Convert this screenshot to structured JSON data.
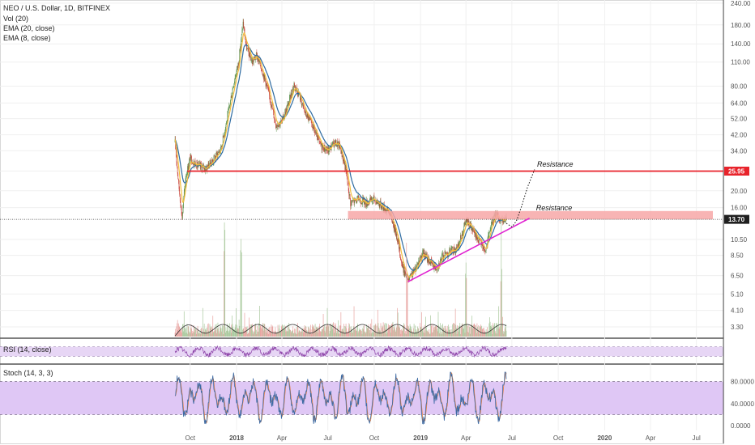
{
  "chart_data": {
    "type": "candlestick",
    "legend": {
      "title": "NEO / U.S. Dollar, 1D, BITFINEX",
      "vol": "Vol (20)",
      "ema20": "EMA (20, close)",
      "ema8": "EMA (8, close)"
    },
    "price_axis": {
      "scale": "log",
      "range": [
        2.9,
        245
      ],
      "ticks": [
        "240.00",
        "180.00",
        "140.00",
        "110.00",
        "80.00",
        "64.00",
        "52.00",
        "42.00",
        "34.00",
        "26.00",
        "20.00",
        "16.00",
        "13.70",
        "10.50",
        "8.50",
        "6.50",
        "5.10",
        "4.10",
        "3.30"
      ]
    },
    "time_axis": {
      "labels": [
        "Oct",
        "2018",
        "Apr",
        "Jul",
        "Oct",
        "2019",
        "Apr",
        "Jul",
        "Oct",
        "2020",
        "Apr",
        "Jul"
      ]
    },
    "price_path": [
      [
        "2017-09-01",
        38
      ],
      [
        "2017-09-08",
        22
      ],
      [
        "2017-09-15",
        14
      ],
      [
        "2017-09-22",
        24
      ],
      [
        "2017-10-01",
        31
      ],
      [
        "2017-10-15",
        28
      ],
      [
        "2017-11-01",
        27
      ],
      [
        "2017-11-15",
        30
      ],
      [
        "2017-12-01",
        35
      ],
      [
        "2017-12-15",
        55
      ],
      [
        "2017-12-25",
        80
      ],
      [
        "2018-01-05",
        110
      ],
      [
        "2018-01-14",
        185
      ],
      [
        "2018-01-20",
        135
      ],
      [
        "2018-02-01",
        110
      ],
      [
        "2018-02-10",
        120
      ],
      [
        "2018-02-20",
        100
      ],
      [
        "2018-03-01",
        82
      ],
      [
        "2018-03-10",
        65
      ],
      [
        "2018-03-20",
        48
      ],
      [
        "2018-04-01",
        50
      ],
      [
        "2018-04-15",
        65
      ],
      [
        "2018-04-25",
        82
      ],
      [
        "2018-05-05",
        72
      ],
      [
        "2018-05-15",
        58
      ],
      [
        "2018-06-01",
        47
      ],
      [
        "2018-06-15",
        37
      ],
      [
        "2018-07-01",
        34
      ],
      [
        "2018-07-15",
        38
      ],
      [
        "2018-07-25",
        36
      ],
      [
        "2018-08-05",
        27
      ],
      [
        "2018-08-15",
        17
      ],
      [
        "2018-09-01",
        18
      ],
      [
        "2018-09-15",
        17
      ],
      [
        "2018-10-01",
        18
      ],
      [
        "2018-10-15",
        16.5
      ],
      [
        "2018-11-01",
        15
      ],
      [
        "2018-11-15",
        11
      ],
      [
        "2018-11-25",
        7.5
      ],
      [
        "2018-12-07",
        6.0
      ],
      [
        "2018-12-20",
        7.0
      ],
      [
        "2019-01-05",
        8.8
      ],
      [
        "2019-01-20",
        7.8
      ],
      [
        "2019-02-01",
        7.2
      ],
      [
        "2019-02-15",
        8.5
      ],
      [
        "2019-03-01",
        9.0
      ],
      [
        "2019-03-15",
        9.3
      ],
      [
        "2019-04-01",
        13.5
      ],
      [
        "2019-04-10",
        12.5
      ],
      [
        "2019-04-20",
        11.0
      ],
      [
        "2019-05-01",
        10.0
      ],
      [
        "2019-05-10",
        9.0
      ],
      [
        "2019-05-20",
        12.5
      ],
      [
        "2019-06-01",
        15.0
      ],
      [
        "2019-06-10",
        13.0
      ],
      [
        "2019-06-20",
        13.7
      ]
    ],
    "resistance_lines": [
      {
        "price": 25.95,
        "label": "25.95",
        "color": "#e8232b"
      },
      {
        "price": 13.7,
        "label": "13.70",
        "style": "dotted"
      }
    ],
    "resistance_zone": {
      "price_low": 13.7,
      "price_high": 15.3,
      "date_start": "2018-08-10",
      "color": "#f7a7a7"
    },
    "support_trendline": {
      "from": [
        "2018-12-07",
        6.0
      ],
      "to": [
        "2019-08-05",
        13.9
      ],
      "color": "#e020d0"
    },
    "projection": {
      "points": [
        [
          "2019-06-20",
          13.0
        ],
        [
          "2019-07-01",
          12.4
        ],
        [
          "2019-07-10",
          13.4
        ],
        [
          "2019-07-20",
          16.2
        ],
        [
          "2019-08-01",
          21.0
        ],
        [
          "2019-08-15",
          26.5
        ]
      ],
      "style": "dotted"
    },
    "annotations": [
      {
        "text": "Resistance",
        "date": "2019-08-20",
        "price": 28.5
      },
      {
        "text": "Resistance",
        "date": "2019-08-18",
        "price": 15.9
      }
    ],
    "volume_spikes": [
      "2017-12-08",
      "2018-01-10",
      "2018-12-05",
      "2019-04-01",
      "2019-06-10"
    ],
    "ema_colors": {
      "ema8": "#f3bd3b",
      "ema20": "#2c6aa0"
    },
    "rsi": {
      "label": "RSI (14, close)",
      "band": [
        30,
        70
      ],
      "band_color": "#e7d6f5",
      "line_color": "#8a3ea6"
    },
    "stoch": {
      "label": "Stoch (14, 3, 3)",
      "ticks": [
        "80.0000",
        "40.0000",
        "0.0000"
      ],
      "band": [
        20,
        80
      ],
      "band_color": "#dfc7f5",
      "k_color": "#3d6aa3",
      "d_color": "#e07a3a"
    }
  }
}
